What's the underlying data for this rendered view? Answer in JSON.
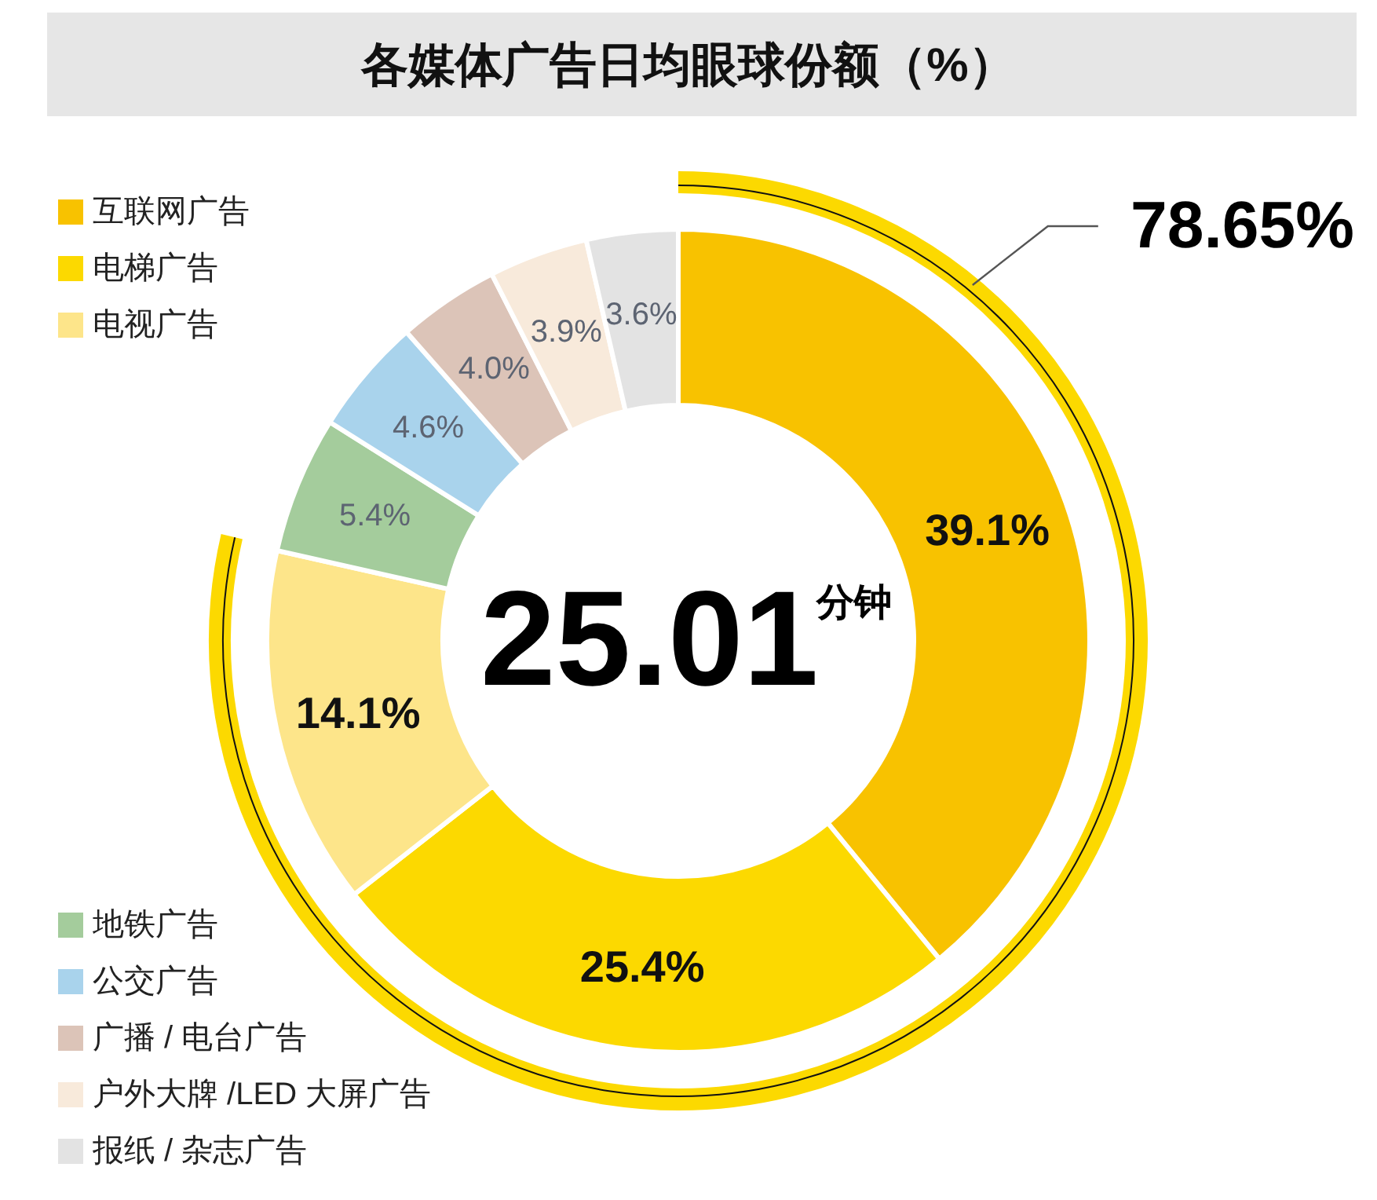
{
  "chart_data": {
    "type": "donut",
    "title": "各媒体广告日均眼球份额（%）",
    "categories": [
      "互联网广告",
      "电梯广告",
      "电视广告",
      "地铁广告",
      "公交广告",
      "广播 / 电台广告",
      "户外大牌 /LED 大屏广告",
      "报纸 / 杂志广告"
    ],
    "values": [
      39.1,
      25.4,
      14.1,
      5.4,
      4.6,
      4.0,
      3.9,
      3.6
    ],
    "colors": [
      "#f8c200",
      "#fcd900",
      "#fde58a",
      "#a4cc9c",
      "#a9d3ec",
      "#dcc4b8",
      "#f8eadb",
      "#e3e3e3"
    ],
    "value_labels": [
      "39.1%",
      "25.4%",
      "14.1%",
      "5.4%",
      "4.6%",
      "4.0%",
      "3.9%",
      "3.6%"
    ],
    "legend": "left",
    "annotations": [
      "25.01分钟",
      "78.65%"
    ]
  }
}
